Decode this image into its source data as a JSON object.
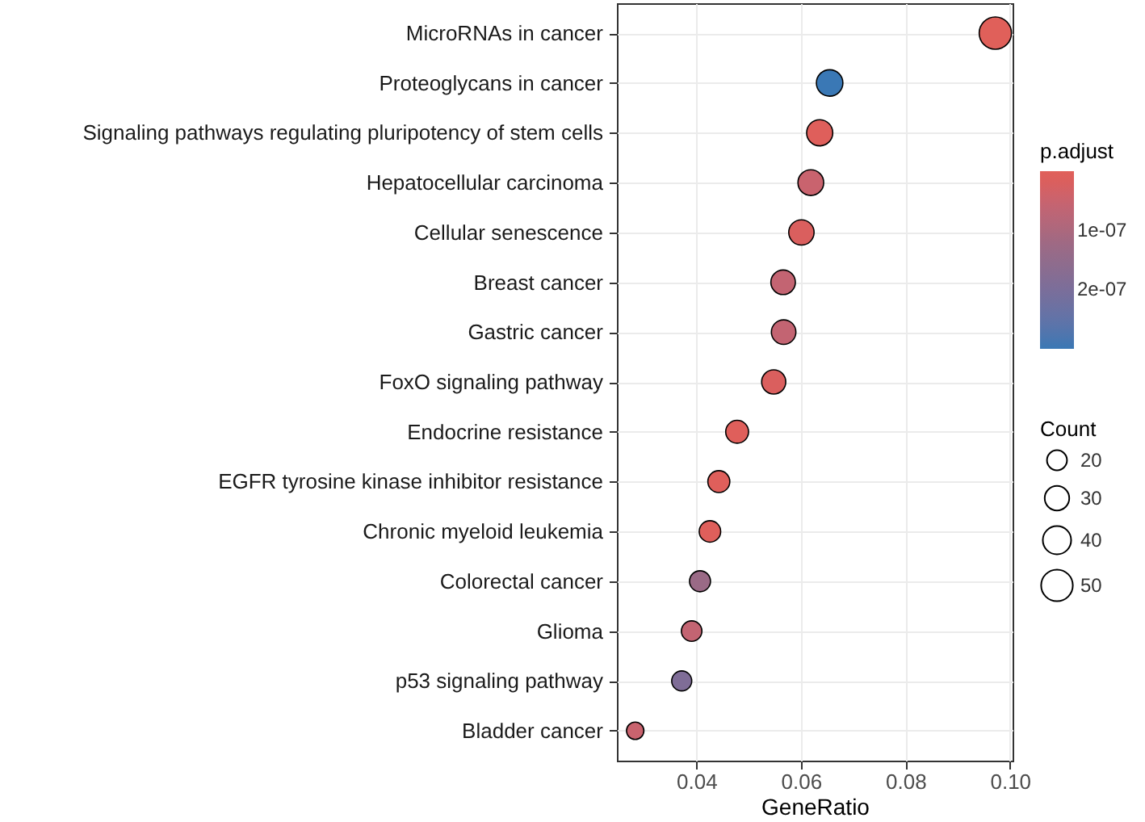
{
  "chart_data": {
    "type": "scatter",
    "categories": [
      "MicroRNAs in cancer",
      "Proteoglycans in cancer",
      "Signaling pathways regulating pluripotency of stem cells",
      "Hepatocellular carcinoma",
      "Cellular senescence",
      "Breast cancer",
      "Gastric cancer",
      "FoxO signaling pathway",
      "Endocrine resistance",
      "EGFR tyrosine kinase inhibitor resistance",
      "Chronic myeloid leukemia",
      "Colorectal cancer",
      "Glioma",
      "p53 signaling pathway",
      "Bladder cancer"
    ],
    "orientation": "horizontal",
    "values": [
      0.0972,
      0.0655,
      0.0636,
      0.0619,
      0.0601,
      0.0566,
      0.0567,
      0.0548,
      0.0478,
      0.0443,
      0.0426,
      0.0407,
      0.0391,
      0.0372,
      0.0283
    ],
    "sizes": [
      52,
      35,
      34,
      33,
      32,
      30,
      30,
      29,
      26,
      24,
      23,
      22,
      21,
      20,
      15
    ],
    "size_legend": [
      20,
      30,
      40,
      50
    ],
    "cvalues": [
      1e-09,
      3e-07,
      1e-08,
      5e-08,
      2e-08,
      6e-08,
      6e-08,
      2e-08,
      1e-08,
      1e-08,
      1e-08,
      1.3e-07,
      6e-08,
      1.9e-07,
      5e-08
    ],
    "colors": [
      "#e0605a",
      "#3a78b5",
      "#df5f5b",
      "#c9636e",
      "#da5f5e",
      "#c36472",
      "#c36472",
      "#da5f5e",
      "#df5f5b",
      "#df5f5b",
      "#df5f5b",
      "#9a6a86",
      "#c36472",
      "#7f6d97",
      "#c9636e"
    ],
    "clim": [
      1e-09,
      3e-07
    ],
    "cticks": [
      {
        "value": 1e-07,
        "label": "1e-07"
      },
      {
        "value": 2e-07,
        "label": "2e-07"
      }
    ],
    "xlim": [
      0.0248,
      0.1005
    ],
    "xticks": [
      0.04,
      0.06,
      0.08,
      {
        "value": 0.1,
        "label": "0.10"
      }
    ],
    "xlabel": "GeneRatio",
    "clabel": "p.adjust",
    "legend_title": "Count",
    "grid": true,
    "marker": "circle"
  }
}
